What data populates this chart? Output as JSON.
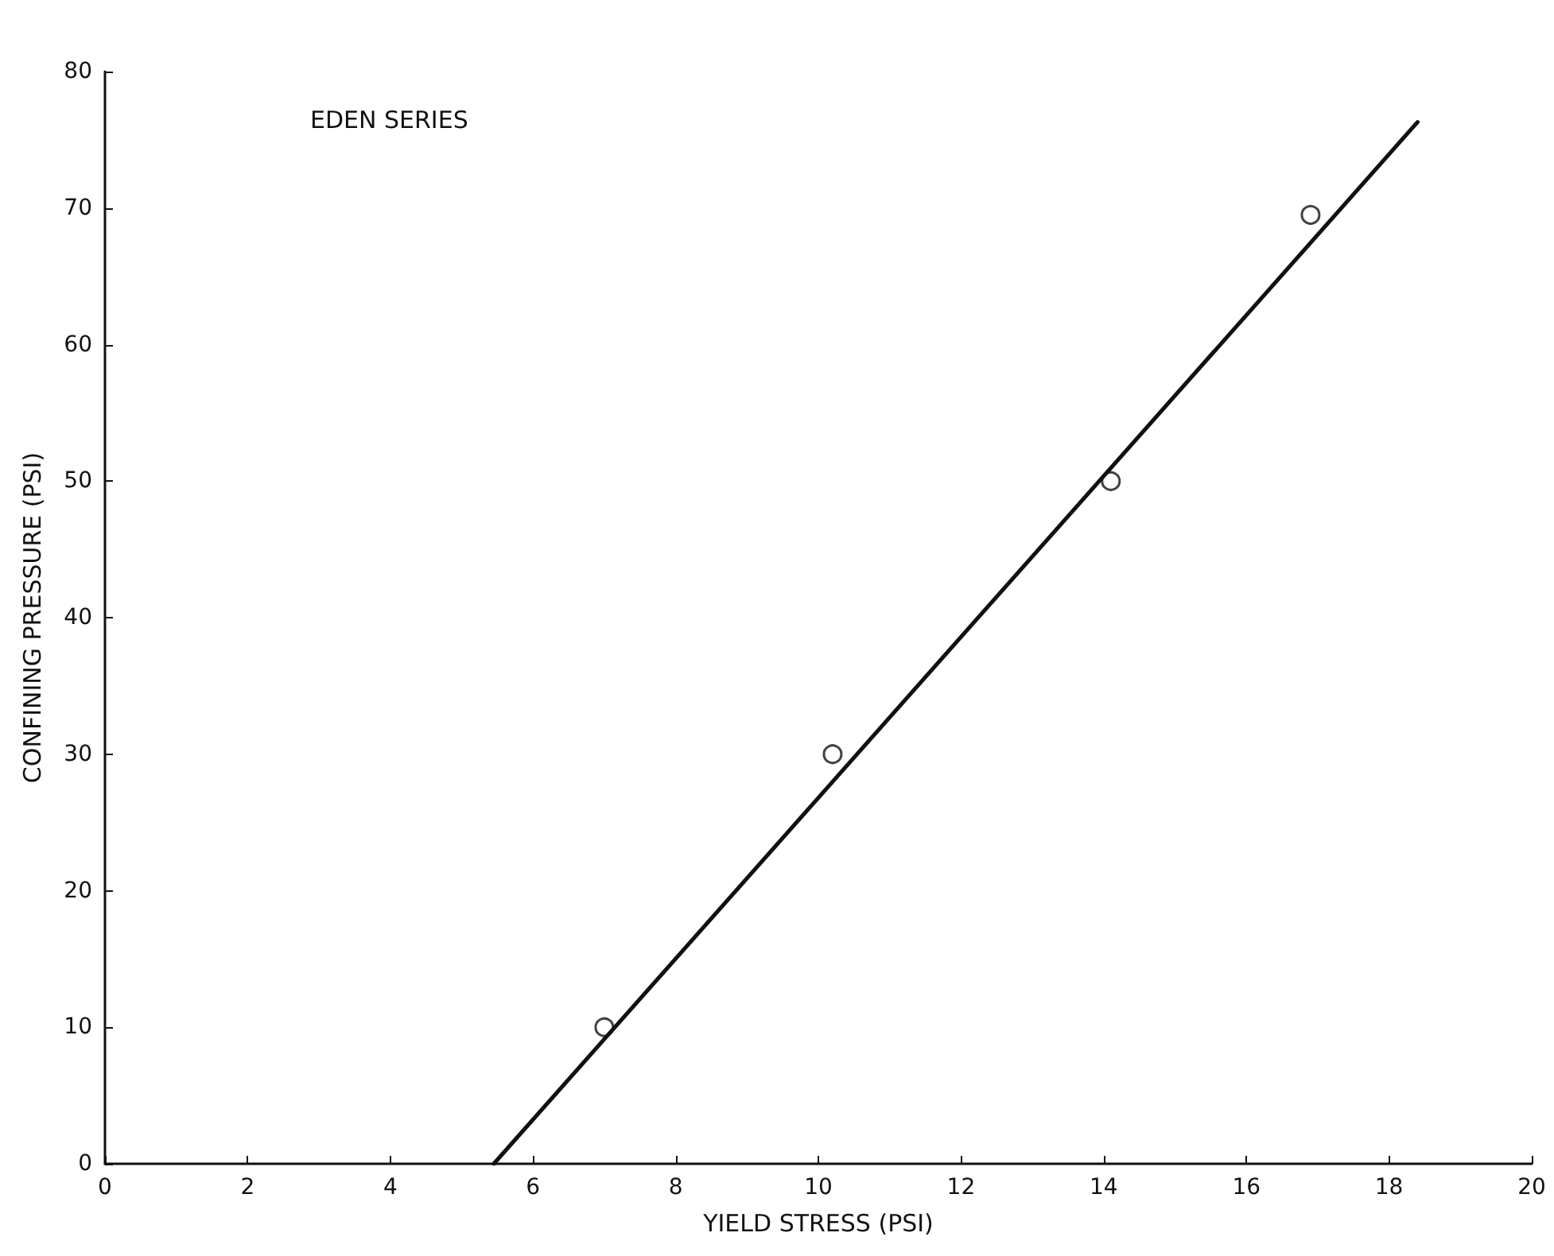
{
  "chart_data": {
    "type": "scatter",
    "xlabel": "YIELD STRESS (PSI)",
    "ylabel": "CONFINING PRESSURE (PSI)",
    "annotations": [
      "EDEN SERIES"
    ],
    "series": [
      {
        "color": "#111111",
        "marker": "circle",
        "x": [
          7.0,
          10.2,
          14.1,
          16.9
        ],
        "values": [
          10,
          30,
          50,
          69.5
        ]
      },
      {
        "type": "line",
        "color": "#111111",
        "marker": "none",
        "line_style": "solid",
        "x": [
          5.45,
          18.4
        ],
        "values": [
          0,
          76.3
        ]
      }
    ],
    "xlim": [
      0,
      20
    ],
    "xticks": [
      0,
      2,
      4,
      6,
      8,
      10,
      12,
      14,
      16,
      18,
      20
    ],
    "ylim": [
      0,
      80
    ],
    "yticks": [
      0,
      10,
      20,
      30,
      40,
      50,
      60,
      70,
      80
    ],
    "grid": false
  }
}
